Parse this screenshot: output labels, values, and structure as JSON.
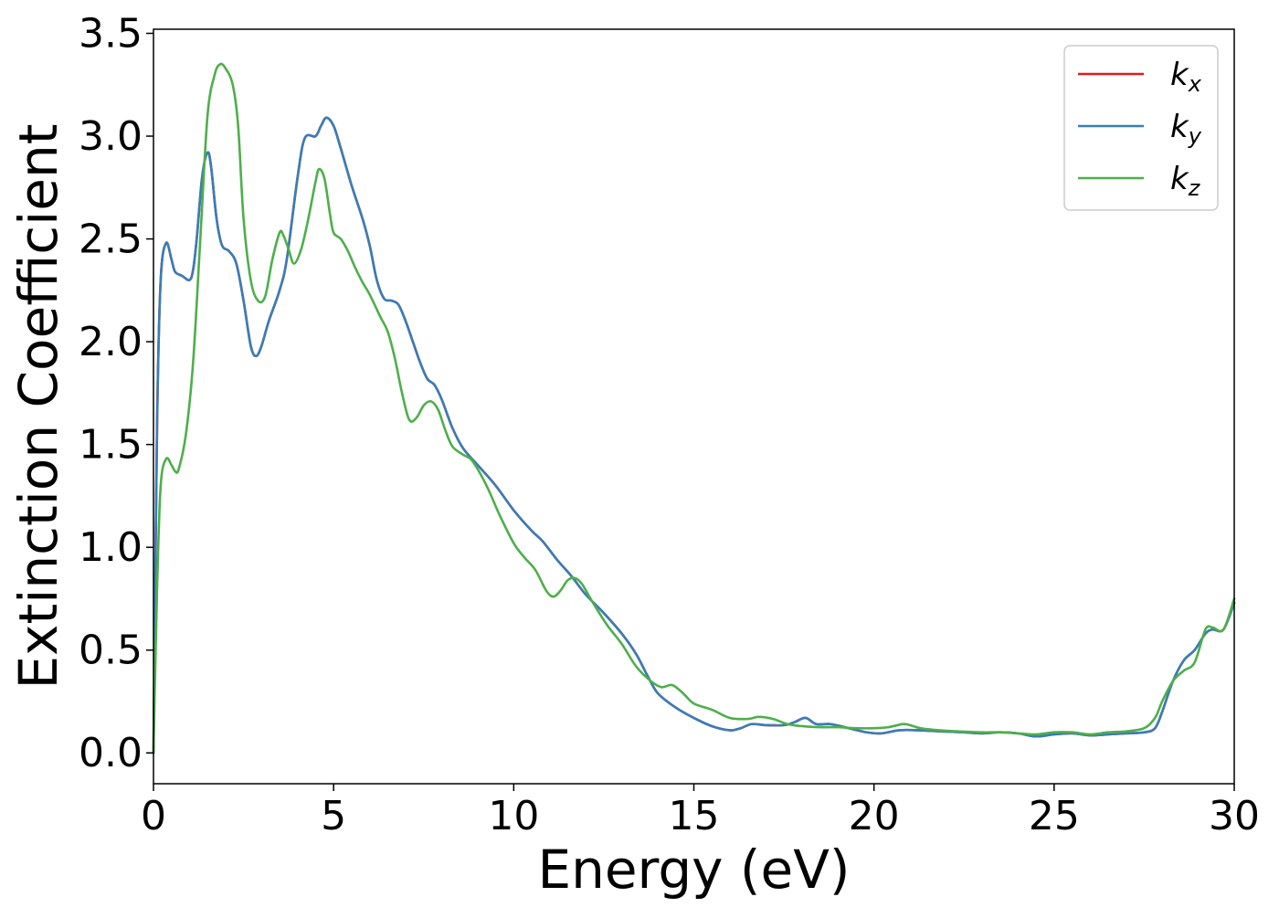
{
  "chart_data": {
    "type": "line",
    "title": "",
    "xlabel": "Energy (eV)",
    "ylabel": "Extinction Coefficient",
    "xlim": [
      0,
      30
    ],
    "ylim": [
      -0.15,
      3.52
    ],
    "xticks": [
      "0",
      "5",
      "10",
      "15",
      "20",
      "25",
      "30"
    ],
    "yticks": [
      "0.0",
      "0.5",
      "1.0",
      "1.5",
      "2.0",
      "2.5",
      "3.0",
      "3.5"
    ],
    "grid": false,
    "legend_position": "top-right",
    "series": [
      {
        "name": "k_x",
        "legend_base": "k",
        "legend_sub": "x",
        "color": "#e41a1c",
        "points": [
          [
            0,
            0
          ],
          [
            0.1,
            1.6
          ],
          [
            0.2,
            2.3
          ],
          [
            0.35,
            2.48
          ],
          [
            0.5,
            2.4
          ],
          [
            0.6,
            2.34
          ],
          [
            0.8,
            2.32
          ],
          [
            1.0,
            2.3
          ],
          [
            1.1,
            2.35
          ],
          [
            1.2,
            2.5
          ],
          [
            1.35,
            2.8
          ],
          [
            1.5,
            2.92
          ],
          [
            1.6,
            2.85
          ],
          [
            1.75,
            2.6
          ],
          [
            1.9,
            2.47
          ],
          [
            2.1,
            2.44
          ],
          [
            2.3,
            2.38
          ],
          [
            2.5,
            2.2
          ],
          [
            2.7,
            1.98
          ],
          [
            2.85,
            1.93
          ],
          [
            3.0,
            1.98
          ],
          [
            3.2,
            2.1
          ],
          [
            3.5,
            2.25
          ],
          [
            3.7,
            2.4
          ],
          [
            4.0,
            2.8
          ],
          [
            4.2,
            2.99
          ],
          [
            4.5,
            3.0
          ],
          [
            4.65,
            3.05
          ],
          [
            4.8,
            3.09
          ],
          [
            5.0,
            3.05
          ],
          [
            5.2,
            2.94
          ],
          [
            5.5,
            2.76
          ],
          [
            5.8,
            2.6
          ],
          [
            6.0,
            2.47
          ],
          [
            6.2,
            2.3
          ],
          [
            6.4,
            2.21
          ],
          [
            6.6,
            2.2
          ],
          [
            6.8,
            2.18
          ],
          [
            7.0,
            2.1
          ],
          [
            7.2,
            2.0
          ],
          [
            7.4,
            1.9
          ],
          [
            7.6,
            1.82
          ],
          [
            7.8,
            1.79
          ],
          [
            8.0,
            1.72
          ],
          [
            8.3,
            1.58
          ],
          [
            8.6,
            1.48
          ],
          [
            9.0,
            1.4
          ],
          [
            9.5,
            1.3
          ],
          [
            10.0,
            1.18
          ],
          [
            10.5,
            1.08
          ],
          [
            10.8,
            1.03
          ],
          [
            11.2,
            0.94
          ],
          [
            11.6,
            0.86
          ],
          [
            12.0,
            0.77
          ],
          [
            12.5,
            0.68
          ],
          [
            13.0,
            0.58
          ],
          [
            13.4,
            0.48
          ],
          [
            13.7,
            0.38
          ],
          [
            14.0,
            0.29
          ],
          [
            14.5,
            0.22
          ],
          [
            15.0,
            0.17
          ],
          [
            15.5,
            0.13
          ],
          [
            16.0,
            0.11
          ],
          [
            16.3,
            0.12
          ],
          [
            16.6,
            0.14
          ],
          [
            17.0,
            0.135
          ],
          [
            17.5,
            0.135
          ],
          [
            17.8,
            0.15
          ],
          [
            18.1,
            0.17
          ],
          [
            18.4,
            0.14
          ],
          [
            18.8,
            0.14
          ],
          [
            19.3,
            0.12
          ],
          [
            19.8,
            0.1
          ],
          [
            20.2,
            0.095
          ],
          [
            20.7,
            0.11
          ],
          [
            21.2,
            0.11
          ],
          [
            21.8,
            0.105
          ],
          [
            22.5,
            0.1
          ],
          [
            23.0,
            0.095
          ],
          [
            23.5,
            0.1
          ],
          [
            24.0,
            0.095
          ],
          [
            24.5,
            0.08
          ],
          [
            25.0,
            0.09
          ],
          [
            25.5,
            0.095
          ],
          [
            26.0,
            0.085
          ],
          [
            26.5,
            0.09
          ],
          [
            27.0,
            0.095
          ],
          [
            27.5,
            0.1
          ],
          [
            27.8,
            0.12
          ],
          [
            28.0,
            0.2
          ],
          [
            28.3,
            0.35
          ],
          [
            28.6,
            0.45
          ],
          [
            28.9,
            0.5
          ],
          [
            29.2,
            0.58
          ],
          [
            29.4,
            0.6
          ],
          [
            29.7,
            0.6
          ],
          [
            30.0,
            0.73
          ]
        ]
      },
      {
        "name": "k_y",
        "legend_base": "k",
        "legend_sub": "y",
        "color": "#377eb8",
        "points": [
          [
            0,
            0
          ],
          [
            0.1,
            1.6
          ],
          [
            0.2,
            2.3
          ],
          [
            0.35,
            2.48
          ],
          [
            0.5,
            2.4
          ],
          [
            0.6,
            2.34
          ],
          [
            0.8,
            2.32
          ],
          [
            1.0,
            2.3
          ],
          [
            1.1,
            2.35
          ],
          [
            1.2,
            2.5
          ],
          [
            1.35,
            2.8
          ],
          [
            1.5,
            2.92
          ],
          [
            1.6,
            2.85
          ],
          [
            1.75,
            2.6
          ],
          [
            1.9,
            2.47
          ],
          [
            2.1,
            2.44
          ],
          [
            2.3,
            2.38
          ],
          [
            2.5,
            2.2
          ],
          [
            2.7,
            1.98
          ],
          [
            2.85,
            1.93
          ],
          [
            3.0,
            1.98
          ],
          [
            3.2,
            2.1
          ],
          [
            3.5,
            2.25
          ],
          [
            3.7,
            2.4
          ],
          [
            4.0,
            2.8
          ],
          [
            4.2,
            2.99
          ],
          [
            4.5,
            3.0
          ],
          [
            4.65,
            3.05
          ],
          [
            4.8,
            3.09
          ],
          [
            5.0,
            3.05
          ],
          [
            5.2,
            2.94
          ],
          [
            5.5,
            2.76
          ],
          [
            5.8,
            2.6
          ],
          [
            6.0,
            2.47
          ],
          [
            6.2,
            2.3
          ],
          [
            6.4,
            2.21
          ],
          [
            6.6,
            2.2
          ],
          [
            6.8,
            2.18
          ],
          [
            7.0,
            2.1
          ],
          [
            7.2,
            2.0
          ],
          [
            7.4,
            1.9
          ],
          [
            7.6,
            1.82
          ],
          [
            7.8,
            1.79
          ],
          [
            8.0,
            1.72
          ],
          [
            8.3,
            1.58
          ],
          [
            8.6,
            1.48
          ],
          [
            9.0,
            1.4
          ],
          [
            9.5,
            1.3
          ],
          [
            10.0,
            1.18
          ],
          [
            10.5,
            1.08
          ],
          [
            10.8,
            1.03
          ],
          [
            11.2,
            0.94
          ],
          [
            11.6,
            0.86
          ],
          [
            12.0,
            0.77
          ],
          [
            12.5,
            0.68
          ],
          [
            13.0,
            0.58
          ],
          [
            13.4,
            0.48
          ],
          [
            13.7,
            0.38
          ],
          [
            14.0,
            0.29
          ],
          [
            14.5,
            0.22
          ],
          [
            15.0,
            0.17
          ],
          [
            15.5,
            0.13
          ],
          [
            16.0,
            0.11
          ],
          [
            16.3,
            0.12
          ],
          [
            16.6,
            0.14
          ],
          [
            17.0,
            0.135
          ],
          [
            17.5,
            0.135
          ],
          [
            17.8,
            0.15
          ],
          [
            18.1,
            0.17
          ],
          [
            18.4,
            0.14
          ],
          [
            18.8,
            0.14
          ],
          [
            19.3,
            0.12
          ],
          [
            19.8,
            0.1
          ],
          [
            20.2,
            0.095
          ],
          [
            20.7,
            0.11
          ],
          [
            21.2,
            0.11
          ],
          [
            21.8,
            0.105
          ],
          [
            22.5,
            0.1
          ],
          [
            23.0,
            0.095
          ],
          [
            23.5,
            0.1
          ],
          [
            24.0,
            0.095
          ],
          [
            24.5,
            0.08
          ],
          [
            25.0,
            0.09
          ],
          [
            25.5,
            0.095
          ],
          [
            26.0,
            0.085
          ],
          [
            26.5,
            0.09
          ],
          [
            27.0,
            0.095
          ],
          [
            27.5,
            0.1
          ],
          [
            27.8,
            0.12
          ],
          [
            28.0,
            0.2
          ],
          [
            28.3,
            0.35
          ],
          [
            28.6,
            0.45
          ],
          [
            28.9,
            0.5
          ],
          [
            29.2,
            0.58
          ],
          [
            29.4,
            0.6
          ],
          [
            29.7,
            0.6
          ],
          [
            30.0,
            0.73
          ]
        ]
      },
      {
        "name": "k_z",
        "legend_base": "k",
        "legend_sub": "z",
        "color": "#4daf4a",
        "points": [
          [
            0,
            0
          ],
          [
            0.1,
            0.8
          ],
          [
            0.2,
            1.3
          ],
          [
            0.35,
            1.43
          ],
          [
            0.5,
            1.4
          ],
          [
            0.6,
            1.37
          ],
          [
            0.7,
            1.38
          ],
          [
            0.9,
            1.55
          ],
          [
            1.1,
            1.9
          ],
          [
            1.3,
            2.5
          ],
          [
            1.5,
            3.1
          ],
          [
            1.7,
            3.3
          ],
          [
            1.85,
            3.35
          ],
          [
            2.0,
            3.33
          ],
          [
            2.2,
            3.25
          ],
          [
            2.35,
            3.05
          ],
          [
            2.5,
            2.6
          ],
          [
            2.7,
            2.3
          ],
          [
            2.9,
            2.2
          ],
          [
            3.1,
            2.22
          ],
          [
            3.3,
            2.4
          ],
          [
            3.5,
            2.53
          ],
          [
            3.6,
            2.52
          ],
          [
            3.75,
            2.45
          ],
          [
            3.9,
            2.38
          ],
          [
            4.1,
            2.45
          ],
          [
            4.3,
            2.6
          ],
          [
            4.5,
            2.78
          ],
          [
            4.6,
            2.84
          ],
          [
            4.75,
            2.79
          ],
          [
            4.9,
            2.62
          ],
          [
            5.0,
            2.53
          ],
          [
            5.2,
            2.5
          ],
          [
            5.4,
            2.44
          ],
          [
            5.6,
            2.36
          ],
          [
            5.8,
            2.29
          ],
          [
            6.0,
            2.23
          ],
          [
            6.3,
            2.12
          ],
          [
            6.5,
            2.05
          ],
          [
            6.7,
            1.92
          ],
          [
            6.9,
            1.75
          ],
          [
            7.1,
            1.62
          ],
          [
            7.3,
            1.63
          ],
          [
            7.5,
            1.69
          ],
          [
            7.7,
            1.71
          ],
          [
            7.9,
            1.67
          ],
          [
            8.1,
            1.57
          ],
          [
            8.3,
            1.49
          ],
          [
            8.6,
            1.45
          ],
          [
            8.8,
            1.43
          ],
          [
            9.0,
            1.38
          ],
          [
            9.3,
            1.28
          ],
          [
            9.6,
            1.16
          ],
          [
            10.0,
            1.02
          ],
          [
            10.3,
            0.95
          ],
          [
            10.6,
            0.89
          ],
          [
            10.9,
            0.79
          ],
          [
            11.1,
            0.76
          ],
          [
            11.3,
            0.79
          ],
          [
            11.5,
            0.84
          ],
          [
            11.7,
            0.85
          ],
          [
            11.9,
            0.82
          ],
          [
            12.2,
            0.73
          ],
          [
            12.6,
            0.62
          ],
          [
            13.0,
            0.53
          ],
          [
            13.4,
            0.42
          ],
          [
            13.8,
            0.35
          ],
          [
            14.1,
            0.32
          ],
          [
            14.4,
            0.33
          ],
          [
            14.7,
            0.29
          ],
          [
            15.0,
            0.24
          ],
          [
            15.5,
            0.21
          ],
          [
            16.0,
            0.17
          ],
          [
            16.5,
            0.165
          ],
          [
            16.8,
            0.175
          ],
          [
            17.2,
            0.165
          ],
          [
            17.6,
            0.14
          ],
          [
            18.0,
            0.13
          ],
          [
            18.5,
            0.125
          ],
          [
            19.0,
            0.125
          ],
          [
            19.5,
            0.12
          ],
          [
            20.0,
            0.12
          ],
          [
            20.4,
            0.125
          ],
          [
            20.8,
            0.14
          ],
          [
            21.0,
            0.135
          ],
          [
            21.3,
            0.12
          ],
          [
            21.8,
            0.11
          ],
          [
            22.3,
            0.105
          ],
          [
            23.0,
            0.1
          ],
          [
            23.5,
            0.1
          ],
          [
            24.0,
            0.095
          ],
          [
            24.5,
            0.09
          ],
          [
            25.0,
            0.1
          ],
          [
            25.5,
            0.1
          ],
          [
            26.0,
            0.09
          ],
          [
            26.5,
            0.1
          ],
          [
            27.0,
            0.105
          ],
          [
            27.5,
            0.12
          ],
          [
            27.8,
            0.17
          ],
          [
            28.0,
            0.25
          ],
          [
            28.3,
            0.35
          ],
          [
            28.6,
            0.4
          ],
          [
            28.9,
            0.44
          ],
          [
            29.2,
            0.6
          ],
          [
            29.4,
            0.61
          ],
          [
            29.7,
            0.6
          ],
          [
            30.0,
            0.75
          ]
        ]
      }
    ]
  }
}
